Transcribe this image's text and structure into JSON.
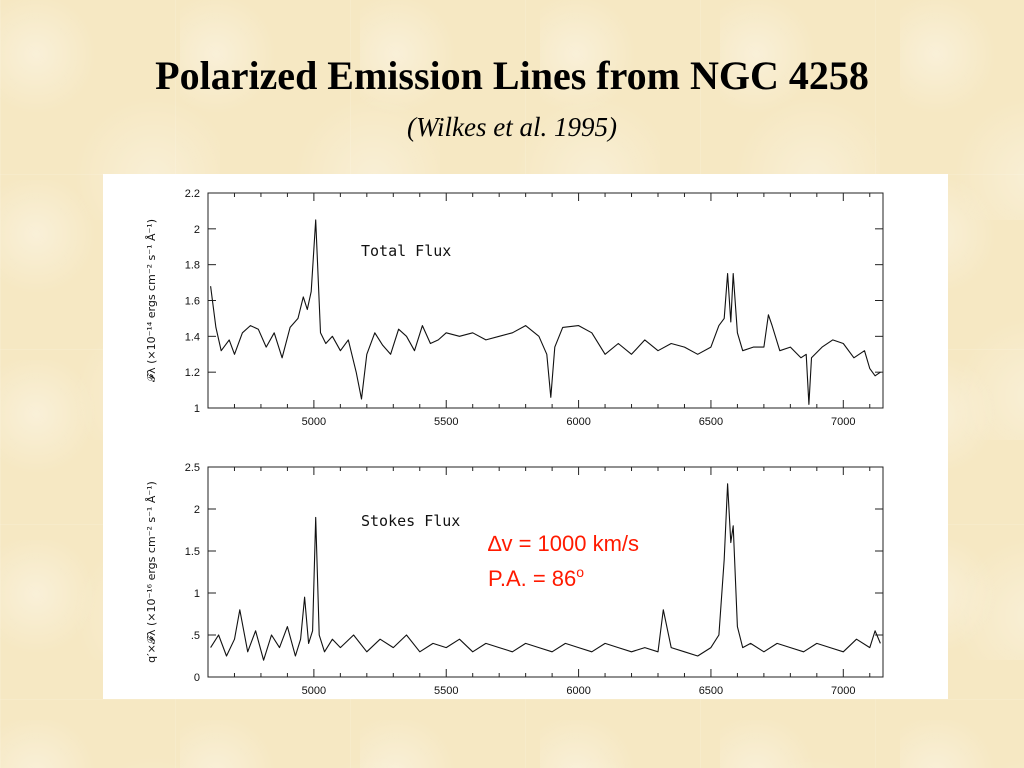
{
  "slide": {
    "title": "Polarized Emission Lines from NGC 4258",
    "subtitle": "(Wilkes et al. 1995)"
  },
  "annotation": {
    "delta_symbol": "∆",
    "velocity": "v = 1000 km/s",
    "pa_text": "P.A. = 86",
    "pa_superscript": "o",
    "color": "#ff1a00"
  },
  "chart_data": [
    {
      "type": "line",
      "panel_label": "Total Flux",
      "xlabel": "",
      "ylabel": "𝓕λ (×10⁻¹⁴ ergs cm⁻² s⁻¹ Å⁻¹)",
      "xlim": [
        4600,
        7150
      ],
      "ylim": [
        1,
        2.2
      ],
      "x_ticks": [
        "5000",
        "5500",
        "6000",
        "6500",
        "7000"
      ],
      "y_ticks": [
        "1",
        "1.2",
        "1.4",
        "1.6",
        "1.8",
        "2",
        "2.2"
      ],
      "series": [
        {
          "x": [
            4610,
            4630,
            4650,
            4680,
            4700,
            4730,
            4760,
            4790,
            4820,
            4850,
            4880,
            4910,
            4940,
            4960,
            4975,
            4990,
            5007,
            5025,
            5045,
            5070,
            5100,
            5130,
            5160,
            5180,
            5200,
            5230,
            5260,
            5290,
            5320,
            5350,
            5380,
            5410,
            5440,
            5470,
            5500,
            5550,
            5600,
            5650,
            5700,
            5750,
            5800,
            5850,
            5880,
            5895,
            5910,
            5940,
            6000,
            6050,
            6100,
            6150,
            6200,
            6250,
            6300,
            6350,
            6400,
            6450,
            6500,
            6530,
            6550,
            6563,
            6575,
            6584,
            6600,
            6620,
            6660,
            6700,
            6717,
            6731,
            6760,
            6800,
            6840,
            6860,
            6870,
            6880,
            6920,
            6960,
            7000,
            7040,
            7080,
            7100,
            7120,
            7140
          ],
          "y": [
            1.68,
            1.45,
            1.32,
            1.38,
            1.3,
            1.42,
            1.46,
            1.44,
            1.34,
            1.42,
            1.28,
            1.45,
            1.5,
            1.62,
            1.55,
            1.65,
            2.05,
            1.42,
            1.36,
            1.4,
            1.32,
            1.38,
            1.2,
            1.05,
            1.3,
            1.42,
            1.35,
            1.3,
            1.44,
            1.4,
            1.32,
            1.46,
            1.36,
            1.38,
            1.42,
            1.4,
            1.42,
            1.38,
            1.4,
            1.42,
            1.46,
            1.4,
            1.3,
            1.06,
            1.34,
            1.45,
            1.46,
            1.42,
            1.3,
            1.36,
            1.3,
            1.38,
            1.32,
            1.36,
            1.34,
            1.3,
            1.34,
            1.46,
            1.5,
            1.75,
            1.48,
            1.75,
            1.42,
            1.32,
            1.34,
            1.34,
            1.52,
            1.46,
            1.32,
            1.34,
            1.28,
            1.3,
            1.02,
            1.28,
            1.34,
            1.38,
            1.36,
            1.28,
            1.32,
            1.22,
            1.18,
            1.2
          ]
        }
      ]
    },
    {
      "type": "line",
      "panel_label": "Stokes Flux",
      "xlabel": "",
      "ylabel": "q′×𝓕λ (×10⁻¹⁶ ergs cm⁻² s⁻¹ Å⁻¹)",
      "xlim": [
        4600,
        7150
      ],
      "ylim": [
        0,
        2.5
      ],
      "x_ticks": [
        "5000",
        "5500",
        "6000",
        "6500",
        "7000"
      ],
      "y_ticks": [
        "0",
        ".5",
        "1",
        "1.5",
        "2",
        "2.5"
      ],
      "series": [
        {
          "x": [
            4610,
            4640,
            4670,
            4700,
            4720,
            4750,
            4780,
            4810,
            4840,
            4870,
            4900,
            4930,
            4950,
            4965,
            4980,
            4995,
            5007,
            5020,
            5040,
            5070,
            5100,
            5150,
            5200,
            5250,
            5300,
            5350,
            5400,
            5450,
            5500,
            5550,
            5600,
            5650,
            5700,
            5750,
            5800,
            5850,
            5900,
            5950,
            6000,
            6050,
            6100,
            6150,
            6200,
            6250,
            6300,
            6320,
            6350,
            6400,
            6450,
            6500,
            6530,
            6550,
            6563,
            6575,
            6584,
            6600,
            6620,
            6650,
            6700,
            6750,
            6800,
            6850,
            6900,
            6950,
            7000,
            7050,
            7100,
            7120,
            7140
          ],
          "y": [
            0.35,
            0.5,
            0.25,
            0.45,
            0.8,
            0.3,
            0.55,
            0.2,
            0.5,
            0.35,
            0.6,
            0.25,
            0.45,
            0.95,
            0.4,
            0.55,
            1.9,
            0.5,
            0.3,
            0.45,
            0.35,
            0.5,
            0.3,
            0.45,
            0.35,
            0.5,
            0.3,
            0.4,
            0.35,
            0.45,
            0.3,
            0.4,
            0.35,
            0.3,
            0.4,
            0.35,
            0.3,
            0.4,
            0.35,
            0.3,
            0.4,
            0.35,
            0.3,
            0.35,
            0.3,
            0.8,
            0.35,
            0.3,
            0.25,
            0.35,
            0.5,
            1.4,
            2.3,
            1.6,
            1.8,
            0.6,
            0.35,
            0.4,
            0.3,
            0.4,
            0.35,
            0.3,
            0.4,
            0.35,
            0.3,
            0.45,
            0.35,
            0.55,
            0.4
          ]
        }
      ]
    }
  ]
}
